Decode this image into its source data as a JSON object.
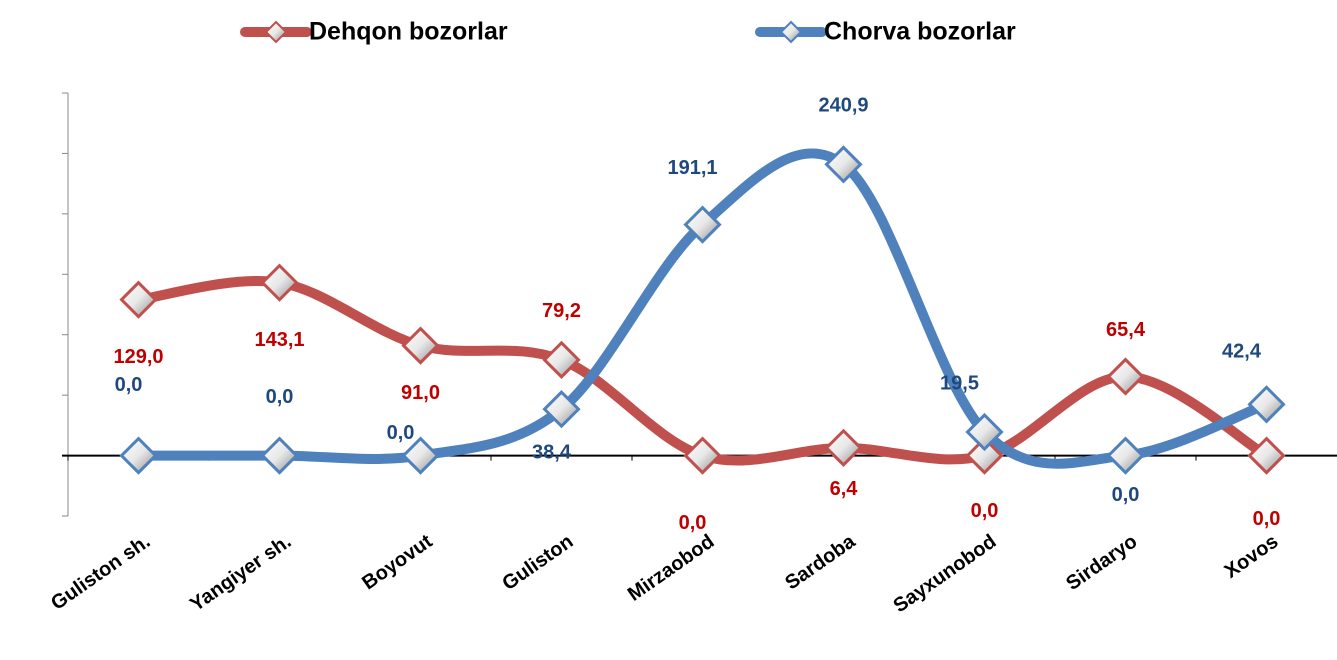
{
  "chart_data": {
    "type": "line",
    "categories": [
      "Guliston  sh.",
      "Yangiyer sh.",
      "Boyovut",
      "Guliston",
      "Mirzaobod",
      "Sardoba",
      "Sayxunobod",
      "Sirdaryo",
      "Xovos"
    ],
    "series": [
      {
        "name": "Dehqon bozorlar",
        "color": "#c0504d",
        "label_color": "#c00000",
        "values": [
          129.0,
          143.1,
          91.0,
          79.2,
          0.0,
          6.4,
          0.0,
          65.4,
          0.0
        ],
        "value_labels": [
          "129,0",
          "143,1",
          "91,0",
          "79,2",
          "0,0",
          "6,4",
          "0,0",
          "65,4",
          "0,0"
        ]
      },
      {
        "name": "Chorva bozorlar",
        "color": "#4f81bd",
        "label_color": "#1f497d",
        "values": [
          0.0,
          0.0,
          0.0,
          38.4,
          191.1,
          240.9,
          19.5,
          0.0,
          42.4
        ],
        "value_labels": [
          "0,0",
          "0,0",
          "0,0",
          "38,4",
          "191,1",
          "240,9",
          "19,5",
          "0,0",
          "42,4"
        ]
      }
    ],
    "ylim": [
      -50,
      300
    ],
    "yticks": [
      -50,
      0,
      50,
      100,
      150,
      200,
      250,
      300
    ],
    "smooth": true
  }
}
